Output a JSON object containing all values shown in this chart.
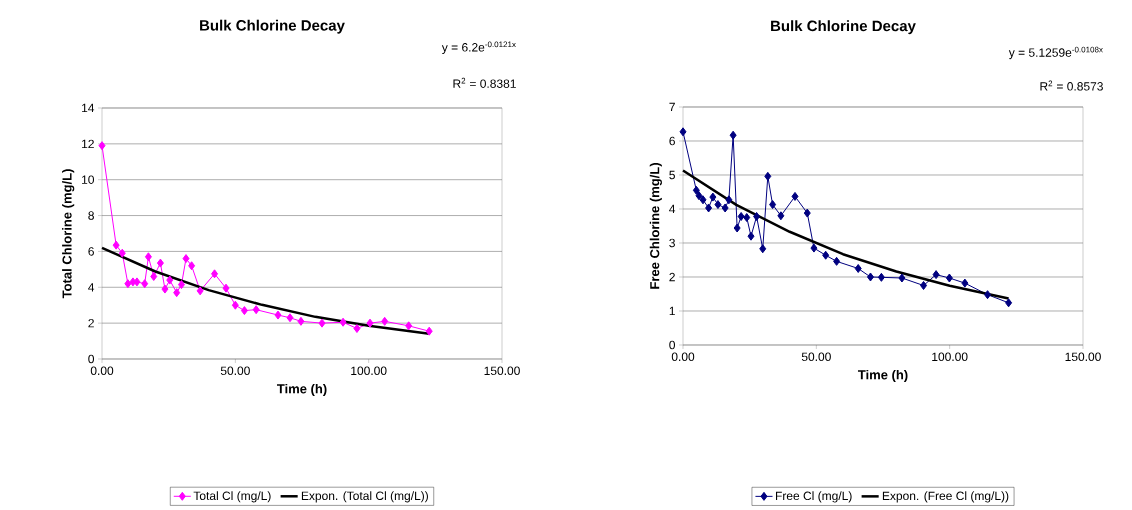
{
  "chart_data": [
    {
      "type": "line",
      "title": "Bulk Chlorine Decay",
      "xlabel": "Time (h)",
      "ylabel": "Total Chlorine (mg/L)",
      "annotations": [
        "y = 6.2e$^{-0.0121x}$",
        "R$^{2}$ = 0.8381"
      ],
      "xlim": [
        0,
        150
      ],
      "ylim": [
        0,
        14
      ],
      "xticks": [
        {
          "value": 0,
          "label": "0.00"
        },
        {
          "value": 50,
          "label": "50.00"
        },
        {
          "value": 100,
          "label": "100.00"
        },
        {
          "value": 150,
          "label": "150.00"
        }
      ],
      "yticks": [
        0,
        2,
        4,
        6,
        8,
        10,
        12,
        14
      ],
      "grid": "y",
      "legend": "bottom",
      "series": [
        {
          "name": "Total Cl (mg/L)",
          "color": "#ff00ff",
          "marker": "diamond",
          "x": [
            0,
            5.3,
            7.6,
            9.7,
            11.6,
            13.1,
            16.0,
            17.4,
            19.4,
            21.9,
            23.6,
            25.4,
            28.0,
            29.8,
            31.5,
            33.6,
            36.8,
            42.2,
            46.5,
            50.0,
            53.4,
            57.8,
            66.0,
            70.5,
            74.6,
            82.5,
            90.4,
            95.6,
            100.5,
            106.0,
            115.0,
            122.7
          ],
          "values": [
            11.9,
            6.35,
            5.9,
            4.2,
            4.3,
            4.3,
            4.2,
            5.7,
            4.6,
            5.35,
            3.9,
            4.4,
            3.7,
            4.15,
            5.6,
            5.2,
            3.8,
            4.75,
            3.95,
            3.0,
            2.7,
            2.75,
            2.45,
            2.3,
            2.1,
            2.0,
            2.05,
            1.7,
            2.0,
            2.1,
            1.85,
            1.55
          ]
        },
        {
          "name": "Expon. (Total Cl (mg/L))",
          "color": "#000000",
          "type": "line",
          "marker": "none",
          "x": [
            0,
            20,
            40,
            60,
            80,
            100,
            122.7
          ],
          "values": [
            6.2,
            4.88,
            3.84,
            3.02,
            2.35,
            1.85,
            1.41
          ]
        }
      ]
    },
    {
      "type": "line",
      "title": "Bulk Chlorine Decay",
      "xlabel": "Time (h)",
      "ylabel": "Free Chlorine (mg/L)",
      "annotations": [
        "y = 5.1259e$^{-0.0108x}$",
        "R$^{2}$ = 0.8573"
      ],
      "xlim": [
        0,
        150
      ],
      "ylim": [
        0,
        7
      ],
      "xticks": [
        {
          "value": 0,
          "label": "0.00"
        },
        {
          "value": 50,
          "label": "50.00"
        },
        {
          "value": 100,
          "label": "100.00"
        },
        {
          "value": 150,
          "label": "150.00"
        }
      ],
      "yticks": [
        0,
        1,
        2,
        3,
        4,
        5,
        6,
        7
      ],
      "grid": "y",
      "legend": "bottom",
      "series": [
        {
          "name": "Free Cl (mg/L)",
          "color": "#000080",
          "marker": "diamond",
          "x": [
            0,
            5.0,
            6.0,
            7.5,
            9.6,
            11.2,
            13.1,
            15.8,
            17.2,
            18.8,
            20.3,
            21.8,
            23.9,
            25.5,
            27.6,
            29.9,
            31.8,
            33.6,
            36.7,
            42.0,
            46.6,
            49.1,
            53.5,
            57.6,
            65.7,
            70.3,
            74.4,
            82.1,
            90.2,
            94.9,
            99.9,
            105.7,
            114.2,
            122.1
          ],
          "values": [
            6.27,
            4.55,
            4.39,
            4.27,
            4.03,
            4.35,
            4.13,
            4.03,
            4.27,
            6.17,
            3.44,
            3.78,
            3.75,
            3.2,
            3.78,
            2.83,
            4.96,
            4.13,
            3.8,
            4.37,
            3.88,
            2.85,
            2.64,
            2.46,
            2.25,
            2.0,
            1.99,
            1.97,
            1.75,
            2.07,
            1.97,
            1.82,
            1.48,
            1.24
          ]
        },
        {
          "name": "Expon. (Free Cl (mg/L))",
          "color": "#000000",
          "type": "line",
          "marker": "none",
          "x": [
            0,
            20,
            40,
            60,
            80,
            100,
            122.1
          ],
          "values": [
            5.13,
            4.12,
            3.33,
            2.67,
            2.16,
            1.74,
            1.37
          ]
        }
      ]
    }
  ]
}
